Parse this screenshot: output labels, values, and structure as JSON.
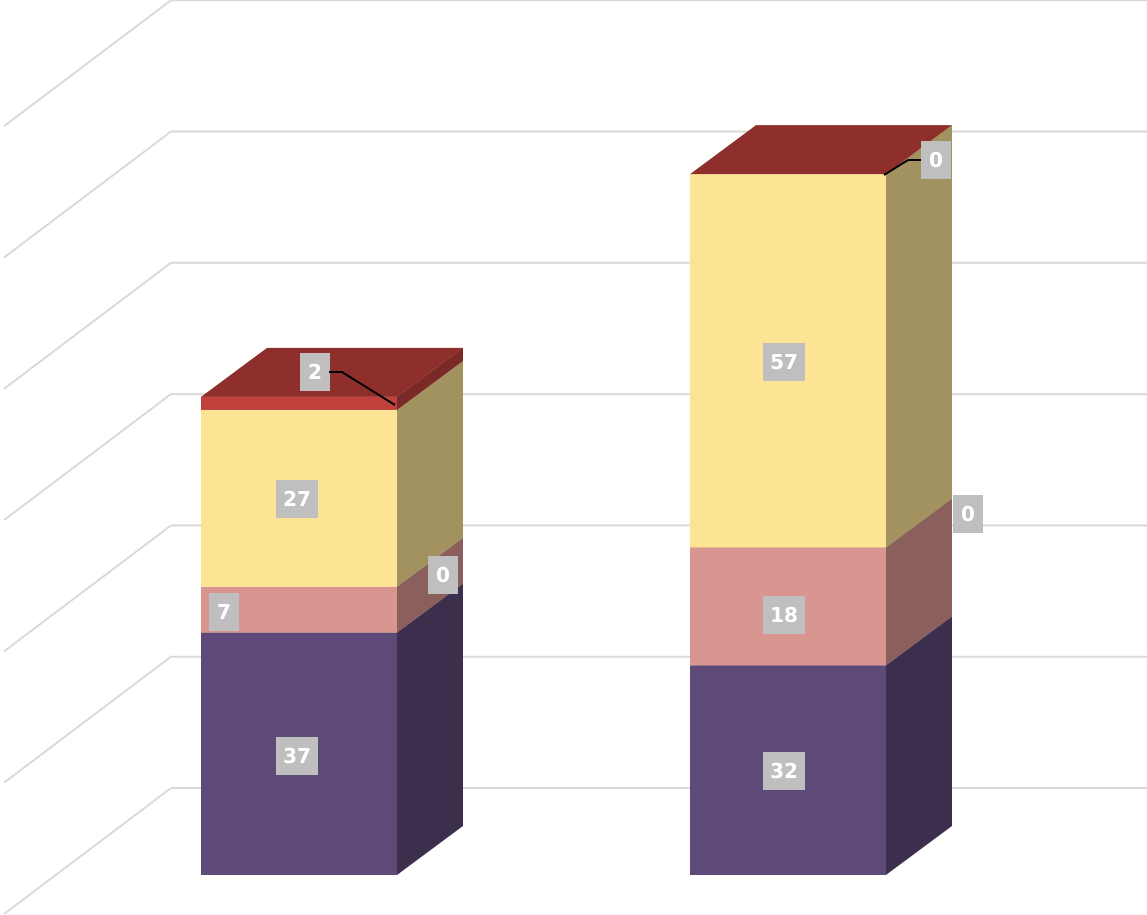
{
  "chart_data": {
    "type": "bar",
    "stacked": true,
    "style": "3d",
    "title": "",
    "xlabel": "",
    "ylabel": "",
    "categories": [
      "",
      ""
    ],
    "ylim": [
      0,
      105
    ],
    "grid": true,
    "legend": "none",
    "series": [
      {
        "values": [
          37,
          32
        ],
        "color": "#5e4a78",
        "labels": [
          "37",
          "32"
        ]
      },
      {
        "values": [
          7,
          18
        ],
        "color": "#d99590",
        "labels": [
          "7",
          "18"
        ]
      },
      {
        "values": [
          0,
          0
        ],
        "color": "#d99590",
        "labels": [
          "0",
          "0"
        ]
      },
      {
        "values": [
          27,
          57
        ],
        "color": "#fde494",
        "labels": [
          "27",
          "57"
        ]
      },
      {
        "values": [
          2,
          0
        ],
        "color": "#c0403c",
        "labels": [
          "2",
          "0"
        ]
      }
    ]
  }
}
